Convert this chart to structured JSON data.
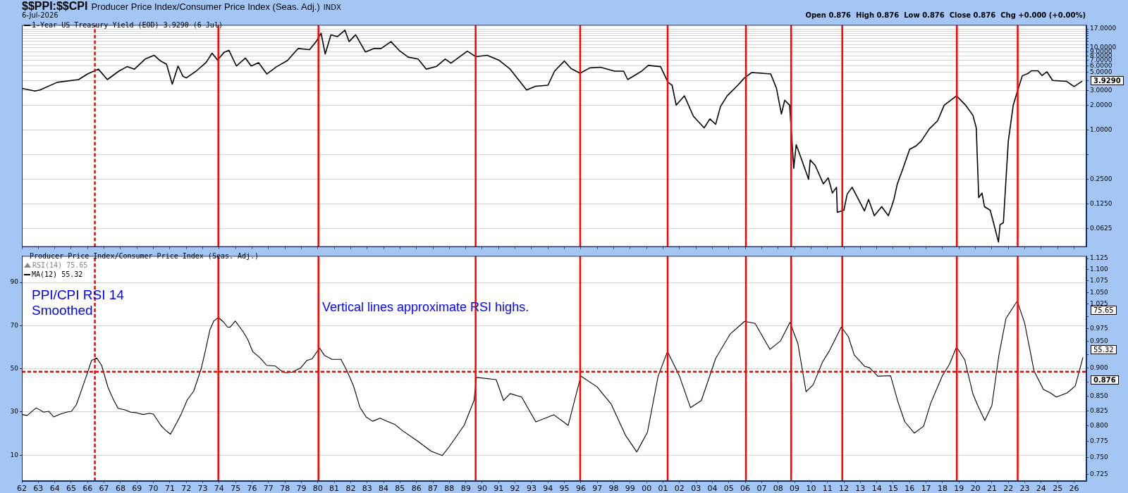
{
  "chart_data": [
    {
      "type": "line",
      "title": "$$PPI:$$CPI",
      "subtitle": "Producer Price Index/Consumer Price Index (Seas. Adj.)",
      "annotations": [
        "INDX",
        "6-Jul-2026",
        "Open 0.876  High 0.876  Low 0.876  Close 0.876  Chg +0.000 (+0.00%)",
        "3.9290"
      ],
      "series": [
        {
          "name": "1-Year US Treasury Yield (EOD) 3.9290 (6 Jul)",
          "color": "#000000",
          "x": [
            1962.0,
            1962.8,
            1963.1,
            1964.15,
            1965.45,
            1966.0,
            1966.65,
            1967.2,
            1967.9,
            1968.4,
            1968.85,
            1969.5,
            1970.05,
            1970.4,
            1970.8,
            1971.15,
            1971.5,
            1971.8,
            1972.0,
            1972.6,
            1973.2,
            1973.57,
            1973.9,
            1974.3,
            1974.6,
            1975.05,
            1975.6,
            1975.95,
            1976.4,
            1976.9,
            1977.5,
            1978.15,
            1978.8,
            1979.5,
            1979.9,
            1980.2,
            1980.45,
            1980.8,
            1981.2,
            1981.65,
            1981.9,
            1982.3,
            1982.9,
            1983.4,
            1983.85,
            1984.45,
            1984.95,
            1985.5,
            1986.1,
            1986.6,
            1987.2,
            1987.75,
            1988.1,
            1989.1,
            1989.6,
            1990.3,
            1991.0,
            1991.7,
            1992.2,
            1992.7,
            1993.25,
            1994.0,
            1994.4,
            1995.0,
            1995.4,
            1995.95,
            1996.55,
            1997.2,
            1998.05,
            1998.6,
            1998.85,
            1999.7,
            2000.1,
            2000.85,
            2001.3,
            2001.55,
            2001.8,
            2002.3,
            2002.85,
            2003.5,
            2003.85,
            2004.2,
            2004.5,
            2004.9,
            2005.55,
            2005.95,
            2006.4,
            2007.55,
            2007.9,
            2008.2,
            2008.4,
            2008.7,
            2008.95,
            2009.1,
            2009.4,
            2009.85,
            2009.95,
            2010.25,
            2010.75,
            2011.05,
            2011.3,
            2011.55,
            2011.6,
            2012.0,
            2012.2,
            2012.5,
            2013.25,
            2013.5,
            2013.85,
            2014.3,
            2014.7,
            2014.9,
            2015.05,
            2015.25,
            2015.55,
            2016.0,
            2016.4,
            2016.7,
            2017.2,
            2017.7,
            2018.1,
            2018.85,
            2019.4,
            2019.85,
            2020.05,
            2020.2,
            2020.4,
            2020.55,
            2020.9,
            2021.1,
            2021.4,
            2021.5,
            2021.7,
            2022.0,
            2022.3,
            2022.55,
            2022.85,
            2023.2,
            2023.4,
            2023.8,
            2024.05,
            2024.35,
            2024.7,
            2025.55,
            2026.0,
            2026.5
          ],
          "values": [
            3.2,
            2.97,
            3.06,
            3.8,
            4.1,
            4.8,
            5.5,
            4.1,
            5.2,
            5.9,
            5.5,
            7.3,
            8.1,
            7.0,
            6.3,
            3.6,
            6.0,
            4.5,
            4.3,
            5.2,
            6.6,
            8.6,
            7.1,
            8.8,
            9.3,
            6.0,
            7.5,
            6.0,
            6.6,
            4.8,
            5.9,
            7.0,
            9.8,
            9.5,
            11.9,
            15.1,
            8.4,
            14.4,
            13.7,
            16.4,
            11.9,
            14.4,
            8.9,
            9.8,
            9.8,
            11.9,
            9.3,
            7.7,
            7.3,
            5.5,
            5.9,
            7.3,
            6.5,
            9.1,
            7.8,
            8.1,
            7.1,
            5.5,
            4.1,
            3.06,
            3.4,
            3.5,
            5.2,
            6.9,
            5.6,
            4.9,
            5.7,
            5.8,
            5.2,
            5.2,
            4.1,
            5.2,
            6.1,
            5.9,
            3.8,
            3.5,
            2.0,
            2.6,
            1.46,
            1.06,
            1.36,
            1.17,
            1.94,
            2.6,
            3.5,
            4.3,
            5.0,
            4.8,
            3.2,
            1.56,
            2.3,
            2.0,
            0.34,
            0.66,
            0.45,
            0.25,
            0.43,
            0.37,
            0.22,
            0.26,
            0.17,
            0.2,
            0.099,
            0.105,
            0.165,
            0.2,
            0.103,
            0.142,
            0.09,
            0.116,
            0.09,
            0.116,
            0.145,
            0.22,
            0.32,
            0.58,
            0.64,
            0.73,
            1.03,
            1.29,
            2.0,
            2.6,
            2.0,
            1.5,
            1.06,
            0.15,
            0.17,
            0.116,
            0.105,
            0.074,
            0.043,
            0.07,
            0.074,
            0.73,
            2.0,
            2.93,
            4.56,
            4.87,
            5.25,
            5.25,
            4.6,
            5.1,
            4.0,
            3.9,
            3.37,
            3.929
          ]
        }
      ],
      "legend": "top left",
      "log": true,
      "grid": "y",
      "tick_labels": "y",
      "xlim": [
        1962,
        2026.75
      ],
      "xticks": [
        {
          "value": 1962,
          "label": null
        },
        {
          "value": 1963,
          "label": null
        },
        {
          "value": 1964,
          "label": null
        },
        {
          "value": 1965,
          "label": null
        },
        {
          "value": 1966,
          "label": null
        },
        {
          "value": 1967,
          "label": null
        },
        {
          "value": 1968,
          "label": null
        },
        {
          "value": 1969,
          "label": null
        },
        {
          "value": 1970,
          "label": null
        },
        {
          "value": 1971,
          "label": null
        },
        {
          "value": 1972,
          "label": null
        },
        {
          "value": 1973,
          "label": null
        },
        {
          "value": 1974,
          "label": null
        },
        {
          "value": 1975,
          "label": null
        },
        {
          "value": 1976,
          "label": null
        },
        {
          "value": 1977,
          "label": null
        },
        {
          "value": 1978,
          "label": null
        },
        {
          "value": 1979,
          "label": null
        },
        {
          "value": 1980,
          "label": null
        },
        {
          "value": 1981,
          "label": null
        },
        {
          "value": 1982,
          "label": null
        },
        {
          "value": 1983,
          "label": null
        },
        {
          "value": 1984,
          "label": null
        },
        {
          "value": 1985,
          "label": null
        },
        {
          "value": 1986,
          "label": null
        },
        {
          "value": 1987,
          "label": null
        },
        {
          "value": 1988,
          "label": null
        },
        {
          "value": 1989,
          "label": null
        },
        {
          "value": 1990,
          "label": null
        },
        {
          "value": 1991,
          "label": null
        },
        {
          "value": 1992,
          "label": null
        },
        {
          "value": 1993,
          "label": null
        },
        {
          "value": 1994,
          "label": null
        },
        {
          "value": 1995,
          "label": null
        },
        {
          "value": 1996,
          "label": null
        },
        {
          "value": 1997,
          "label": null
        },
        {
          "value": 1998,
          "label": null
        },
        {
          "value": 1999,
          "label": null
        },
        {
          "value": 2000,
          "label": null
        },
        {
          "value": 2001,
          "label": null
        },
        {
          "value": 2002,
          "label": null
        },
        {
          "value": 2003,
          "label": null
        },
        {
          "value": 2004,
          "label": null
        },
        {
          "value": 2005,
          "label": null
        },
        {
          "value": 2006,
          "label": null
        },
        {
          "value": 2007,
          "label": null
        },
        {
          "value": 2008,
          "label": null
        },
        {
          "value": 2009,
          "label": null
        },
        {
          "value": 2010,
          "label": null
        },
        {
          "value": 2011,
          "label": null
        },
        {
          "value": 2012,
          "label": null
        },
        {
          "value": 2013,
          "label": null
        },
        {
          "value": 2014,
          "label": null
        },
        {
          "value": 2015,
          "label": null
        },
        {
          "value": 2016,
          "label": null
        },
        {
          "value": 2017,
          "label": null
        },
        {
          "value": 2018,
          "label": null
        },
        {
          "value": 2019,
          "label": null
        },
        {
          "value": 2020,
          "label": null
        },
        {
          "value": 2021,
          "label": null
        },
        {
          "value": 2022,
          "label": null
        },
        {
          "value": 2023,
          "label": null
        },
        {
          "value": 2024,
          "label": null
        },
        {
          "value": 2025,
          "label": null
        },
        {
          "value": 2026,
          "label": null
        }
      ],
      "ylim": [
        0.0375,
        19
      ],
      "yticks": [
        {
          "value": 0.0625,
          "label": "0.0625"
        },
        {
          "value": 0.125,
          "label": "0.1250"
        },
        {
          "value": 0.25,
          "label": "0.2500"
        },
        {
          "value": 0.5,
          "label": null
        },
        {
          "value": 1,
          "label": "1.0000"
        },
        {
          "value": 2,
          "label": "2.0000"
        },
        {
          "value": 3,
          "label": "3.0000"
        },
        {
          "value": 4,
          "label": null
        },
        {
          "value": 5,
          "label": "5.0000"
        },
        {
          "value": 6,
          "label": "6.0000"
        },
        {
          "value": 7,
          "label": "7.0000"
        },
        {
          "value": 8,
          "label": "8.0000"
        },
        {
          "value": 9,
          "label": "9.0000"
        },
        {
          "value": 10,
          "label": "10.0000"
        },
        {
          "value": 11,
          "label": null
        },
        {
          "value": 12,
          "label": null
        },
        {
          "value": 13,
          "label": null
        },
        {
          "value": 14,
          "label": null
        },
        {
          "value": 15,
          "label": null
        },
        {
          "value": 16,
          "label": null
        },
        {
          "value": 17,
          "label": "17.0000"
        }
      ],
      "ref_lines": [
        {
          "axis": "x",
          "value": 1966.44,
          "color": "#ff0000",
          "line_style": "dashed"
        },
        {
          "axis": "x",
          "value": 1973.95,
          "color": "#ff0000",
          "line_style": "solid"
        },
        {
          "axis": "x",
          "value": 1980.04,
          "color": "#ff0000",
          "line_style": "solid"
        },
        {
          "axis": "x",
          "value": 1989.6,
          "color": "#ff0000",
          "line_style": "solid"
        },
        {
          "axis": "x",
          "value": 1995.96,
          "color": "#ff0000",
          "line_style": "solid"
        },
        {
          "axis": "x",
          "value": 2001.28,
          "color": "#ff0000",
          "line_style": "solid"
        },
        {
          "axis": "x",
          "value": 2006.04,
          "color": "#ff0000",
          "line_style": "solid"
        },
        {
          "axis": "x",
          "value": 2008.79,
          "color": "#ff0000",
          "line_style": "solid"
        },
        {
          "axis": "x",
          "value": 2011.9,
          "color": "#ff0000",
          "line_style": "solid"
        },
        {
          "axis": "x",
          "value": 2018.87,
          "color": "#ff0000",
          "line_style": "solid"
        },
        {
          "axis": "x",
          "value": 2022.57,
          "color": "#ff0000",
          "line_style": "solid"
        }
      ]
    },
    {
      "type": "line",
      "legend_title": "Producer Price Index/Consumer Price Index (Seas. Adj.)",
      "annotations": [
        "PPI/CPI RSI 14\nSmoothed",
        "Vertical lines approximate RSI highs.",
        "RSI(14) 75.65",
        "75.65",
        "55.32",
        "0.876"
      ],
      "series": [
        {
          "name": "MA(12) 55.32",
          "color": "#000000",
          "x": [
            1962.0,
            1962.33,
            1962.87,
            1963.33,
            1963.64,
            1963.94,
            1964.33,
            1964.71,
            1965.02,
            1965.32,
            1965.63,
            1965.94,
            1966.24,
            1966.55,
            1966.85,
            1967.24,
            1967.54,
            1967.85,
            1968.31,
            1968.62,
            1969.0,
            1969.38,
            1969.77,
            1970.0,
            1970.46,
            1970.76,
            1971.04,
            1971.37,
            1971.68,
            1972.06,
            1972.45,
            1972.9,
            1973.13,
            1973.44,
            1973.67,
            1973.95,
            1974.29,
            1974.51,
            1974.66,
            1974.98,
            1975.43,
            1975.74,
            1976.05,
            1976.5,
            1976.89,
            1977.42,
            1977.73,
            1978.04,
            1978.42,
            1978.96,
            1979.34,
            1979.65,
            1980.11,
            1980.41,
            1980.87,
            1981.41,
            1981.79,
            1982.18,
            1982.56,
            1982.94,
            1983.33,
            1983.79,
            1984.24,
            1984.67,
            1985.16,
            1986.04,
            1986.9,
            1987.57,
            1988.0,
            1988.9,
            1989.5,
            1989.65,
            1990.85,
            1991.3,
            1991.7,
            1992.4,
            1993.26,
            1994.35,
            1995.23,
            1996.0,
            1996.98,
            1997.85,
            1998.73,
            1999.4,
            2000.05,
            2000.7,
            2001.27,
            2002.0,
            2002.67,
            2003.33,
            2004.2,
            2005.08,
            2005.96,
            2006.6,
            2007.5,
            2008.14,
            2008.72,
            2009.2,
            2009.7,
            2010.13,
            2010.7,
            2011.13,
            2011.84,
            2012.27,
            2012.63,
            2013.27,
            2013.56,
            2014.06,
            2014.84,
            2015.27,
            2015.7,
            2016.28,
            2016.85,
            2017.28,
            2017.99,
            2018.42,
            2018.85,
            2019.35,
            2019.85,
            2020.14,
            2020.57,
            2021.0,
            2021.43,
            2021.86,
            2022.54,
            2022.99,
            2023.57,
            2024.14,
            2024.57,
            2024.92,
            2025.57,
            2026.07,
            2026.54
          ],
          "values": [
            28.8,
            28.4,
            31.9,
            29.9,
            30.3,
            27.7,
            29.0,
            29.9,
            30.3,
            33.4,
            40.2,
            47.0,
            53.9,
            55.0,
            51.6,
            41.4,
            36.2,
            31.7,
            30.9,
            29.9,
            29.6,
            28.8,
            29.4,
            29.0,
            23.7,
            21.4,
            19.7,
            24.3,
            28.8,
            35.6,
            39.6,
            49.8,
            57.3,
            68.1,
            72.1,
            73.8,
            71.5,
            69.3,
            69.3,
            72.1,
            67.5,
            63.6,
            57.9,
            55.0,
            51.6,
            51.3,
            49.3,
            48.2,
            48.4,
            50.4,
            53.9,
            54.6,
            59.6,
            56.2,
            54.4,
            54.4,
            48.8,
            41.9,
            32.2,
            27.7,
            25.7,
            27.1,
            25.6,
            24.3,
            21.3,
            16.7,
            11.8,
            9.8,
            14.0,
            23.8,
            35.3,
            46.0,
            45.0,
            35.3,
            38.5,
            36.9,
            25.4,
            28.7,
            23.8,
            46.6,
            41.7,
            33.6,
            19.0,
            11.5,
            20.6,
            46.6,
            58.0,
            46.6,
            32.0,
            35.3,
            54.8,
            66.1,
            72.0,
            71.0,
            59.0,
            62.9,
            71.5,
            61.7,
            39.4,
            42.6,
            53.2,
            58.5,
            69.4,
            64.9,
            56.4,
            51.1,
            50.5,
            46.6,
            46.8,
            35.1,
            25.5,
            20.2,
            23.4,
            34.1,
            46.8,
            52.1,
            60.1,
            54.2,
            38.3,
            33.0,
            26.1,
            33.0,
            56.4,
            73.4,
            81.4,
            71.3,
            48.9,
            40.4,
            38.8,
            36.9,
            38.8,
            42.0,
            55.3
          ]
        }
      ],
      "legend": "top left",
      "log": "y2",
      "grid": "y",
      "xlim": [
        1962,
        2026.75
      ],
      "xticks": [
        {
          "value": 1962,
          "label": "62"
        },
        {
          "value": 1963,
          "label": "63"
        },
        {
          "value": 1964,
          "label": "64"
        },
        {
          "value": 1965,
          "label": "65"
        },
        {
          "value": 1966,
          "label": "66"
        },
        {
          "value": 1967,
          "label": "67"
        },
        {
          "value": 1968,
          "label": "68"
        },
        {
          "value": 1969,
          "label": "69"
        },
        {
          "value": 1970,
          "label": "70"
        },
        {
          "value": 1971,
          "label": "71"
        },
        {
          "value": 1972,
          "label": "72"
        },
        {
          "value": 1973,
          "label": "73"
        },
        {
          "value": 1974,
          "label": "74"
        },
        {
          "value": 1975,
          "label": "75"
        },
        {
          "value": 1976,
          "label": "76"
        },
        {
          "value": 1977,
          "label": "77"
        },
        {
          "value": 1978,
          "label": "78"
        },
        {
          "value": 1979,
          "label": "79"
        },
        {
          "value": 1980,
          "label": "80"
        },
        {
          "value": 1981,
          "label": "81"
        },
        {
          "value": 1982,
          "label": "82"
        },
        {
          "value": 1983,
          "label": "83"
        },
        {
          "value": 1984,
          "label": "84"
        },
        {
          "value": 1985,
          "label": "85"
        },
        {
          "value": 1986,
          "label": "86"
        },
        {
          "value": 1987,
          "label": "87"
        },
        {
          "value": 1988,
          "label": "88"
        },
        {
          "value": 1989,
          "label": "89"
        },
        {
          "value": 1990,
          "label": "90"
        },
        {
          "value": 1991,
          "label": "91"
        },
        {
          "value": 1992,
          "label": "92"
        },
        {
          "value": 1993,
          "label": "93"
        },
        {
          "value": 1994,
          "label": "94"
        },
        {
          "value": 1995,
          "label": "95"
        },
        {
          "value": 1996,
          "label": "96"
        },
        {
          "value": 1997,
          "label": "97"
        },
        {
          "value": 1998,
          "label": "98"
        },
        {
          "value": 1999,
          "label": "99"
        },
        {
          "value": 2000,
          "label": "00"
        },
        {
          "value": 2001,
          "label": "01"
        },
        {
          "value": 2002,
          "label": "02"
        },
        {
          "value": 2003,
          "label": "03"
        },
        {
          "value": 2004,
          "label": "04"
        },
        {
          "value": 2005,
          "label": "05"
        },
        {
          "value": 2006,
          "label": "06"
        },
        {
          "value": 2007,
          "label": "07"
        },
        {
          "value": 2008,
          "label": "08"
        },
        {
          "value": 2009,
          "label": "09"
        },
        {
          "value": 2010,
          "label": "10"
        },
        {
          "value": 2011,
          "label": "11"
        },
        {
          "value": 2012,
          "label": "12"
        },
        {
          "value": 2013,
          "label": "13"
        },
        {
          "value": 2014,
          "label": "14"
        },
        {
          "value": 2015,
          "label": "15"
        },
        {
          "value": 2016,
          "label": "16"
        },
        {
          "value": 2017,
          "label": "17"
        },
        {
          "value": 2018,
          "label": "18"
        },
        {
          "value": 2019,
          "label": "19"
        },
        {
          "value": 2020,
          "label": "20"
        },
        {
          "value": 2021,
          "label": "21"
        },
        {
          "value": 2022,
          "label": "22"
        },
        {
          "value": 2023,
          "label": "23"
        },
        {
          "value": 2024,
          "label": "24"
        },
        {
          "value": 2025,
          "label": "25"
        },
        {
          "value": 2026,
          "label": "26"
        }
      ],
      "ylim": [
        -2,
        102.3
      ],
      "yticks": [
        10,
        30,
        50,
        70,
        90
      ],
      "y2lim": [
        0.715,
        1.131
      ],
      "y2ticks": [
        {
          "value": 0.725,
          "label": "0.725"
        },
        {
          "value": 0.75,
          "label": "0.750"
        },
        {
          "value": 0.775,
          "label": "0.775"
        },
        {
          "value": 0.8,
          "label": "0.800"
        },
        {
          "value": 0.825,
          "label": "0.825"
        },
        {
          "value": 0.85,
          "label": "0.850"
        },
        {
          "value": 0.875,
          "label": null
        },
        {
          "value": 0.9,
          "label": "0.900"
        },
        {
          "value": 0.925,
          "label": null
        },
        {
          "value": 0.95,
          "label": "0.950"
        },
        {
          "value": 0.975,
          "label": "0.975"
        },
        {
          "value": 1.0,
          "label": null
        },
        {
          "value": 1.025,
          "label": "1.025"
        },
        {
          "value": 1.05,
          "label": "1.050"
        },
        {
          "value": 1.075,
          "label": "1.075"
        },
        {
          "value": 1.1,
          "label": "1.100"
        },
        {
          "value": 1.125,
          "label": "1.125"
        }
      ],
      "ref_lines": [
        {
          "axis": "y",
          "value": 48.7,
          "color": "#ff0000",
          "line_style": "dashed"
        },
        {
          "axis": "x",
          "value": 1966.44,
          "color": "#ff0000",
          "line_style": "dashed"
        },
        {
          "axis": "x",
          "value": 1973.95,
          "color": "#ff0000",
          "line_style": "solid"
        },
        {
          "axis": "x",
          "value": 1980.04,
          "color": "#ff0000",
          "line_style": "solid"
        },
        {
          "axis": "x",
          "value": 1989.6,
          "color": "#ff0000",
          "line_style": "solid"
        },
        {
          "axis": "x",
          "value": 1995.96,
          "color": "#ff0000",
          "line_style": "solid"
        },
        {
          "axis": "x",
          "value": 2001.28,
          "color": "#ff0000",
          "line_style": "solid"
        },
        {
          "axis": "x",
          "value": 2006.04,
          "color": "#ff0000",
          "line_style": "solid"
        },
        {
          "axis": "x",
          "value": 2008.79,
          "color": "#ff0000",
          "line_style": "solid"
        },
        {
          "axis": "x",
          "value": 2011.9,
          "color": "#ff0000",
          "line_style": "solid"
        },
        {
          "axis": "x",
          "value": 2018.87,
          "color": "#ff0000",
          "line_style": "solid"
        },
        {
          "axis": "x",
          "value": 2022.57,
          "color": "#ff0000",
          "line_style": "solid"
        }
      ]
    }
  ]
}
